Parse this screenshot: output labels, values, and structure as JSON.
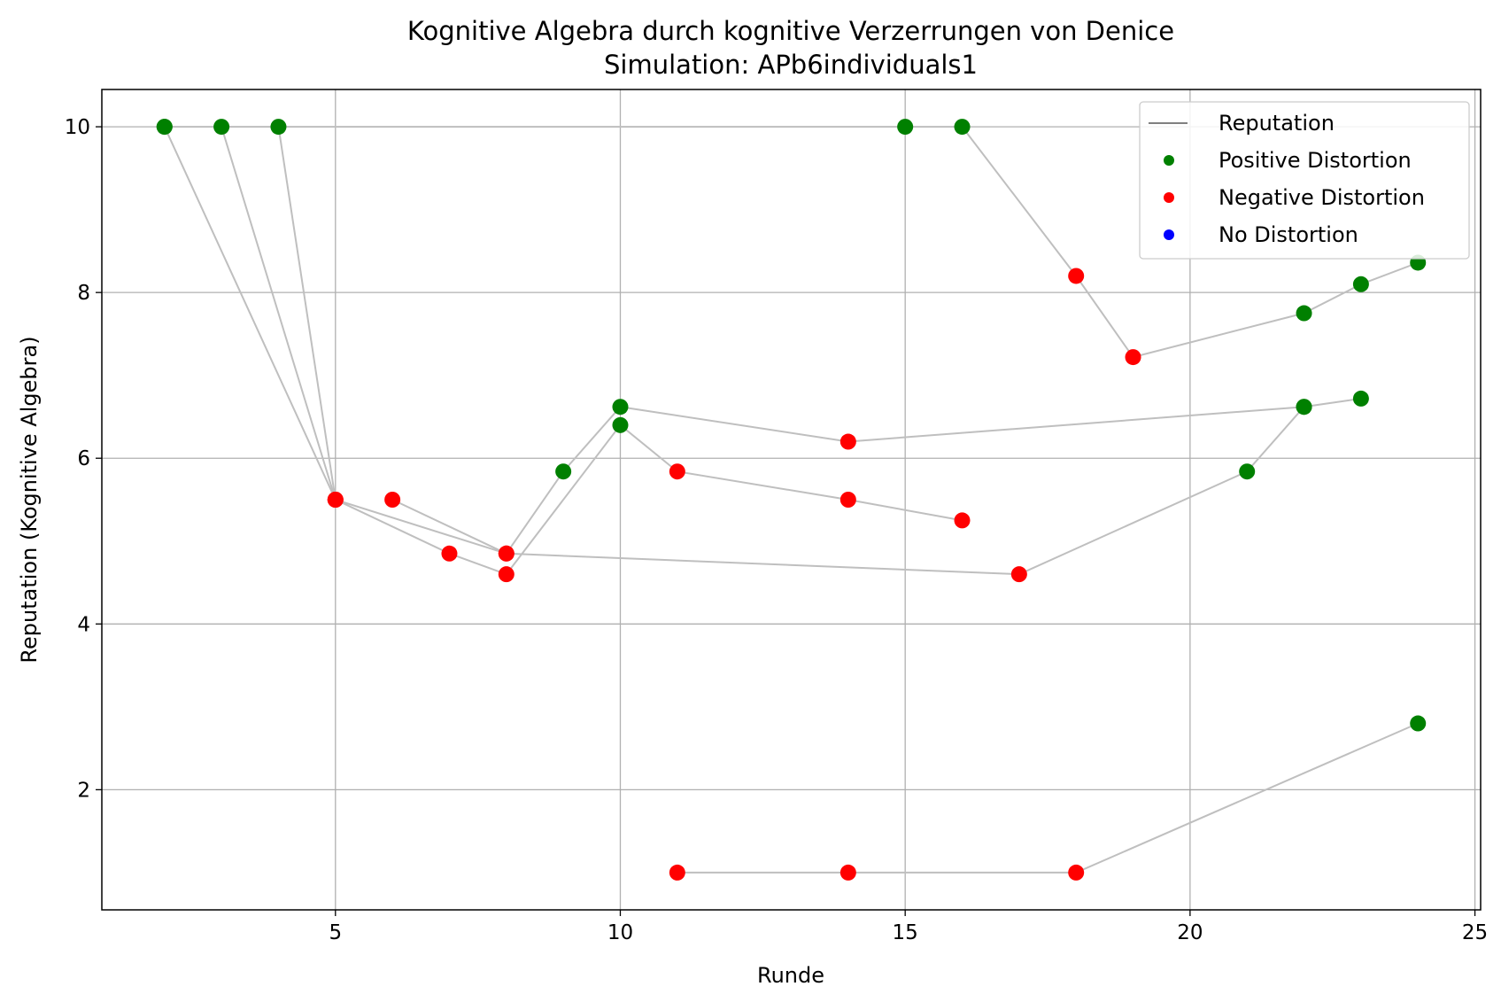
{
  "chart_data": {
    "type": "scatter",
    "title": "Kognitive Algebra durch kognitive Verzerrungen von Denice",
    "subtitle": "Simulation: APb6individuals1",
    "xlabel": "Runde",
    "ylabel": "Reputation (Kognitive Algebra)",
    "xlim": [
      0.9,
      25.1
    ],
    "ylim": [
      0.55,
      10.45
    ],
    "xticks": [
      5,
      10,
      15,
      20,
      25
    ],
    "yticks": [
      2,
      4,
      6,
      8,
      10
    ],
    "grid": true,
    "legend_position": "top-right",
    "colors": {
      "line": "#bfbfbf",
      "legend_line": "#808080",
      "positive": "#008000",
      "negative": "#ff0000",
      "none": "#0000ff",
      "grid": "#b0b0b0"
    },
    "legend": [
      {
        "label": "Reputation",
        "marker": "line"
      },
      {
        "label": "Positive Distortion",
        "marker": "positive"
      },
      {
        "label": "Negative Distortion",
        "marker": "negative"
      },
      {
        "label": "No Distortion",
        "marker": "none"
      }
    ],
    "series": [
      {
        "points": [
          {
            "x": 2,
            "y": 10,
            "d": "positive"
          },
          {
            "x": 5,
            "y": 5.5,
            "d": "negative"
          },
          {
            "x": 7,
            "y": 4.85,
            "d": "negative"
          },
          {
            "x": 8,
            "y": 4.6,
            "d": "negative"
          },
          {
            "x": 10,
            "y": 6.4,
            "d": "positive"
          },
          {
            "x": 11,
            "y": 5.84,
            "d": "negative"
          },
          {
            "x": 14,
            "y": 5.5,
            "d": "negative"
          },
          {
            "x": 16,
            "y": 5.25,
            "d": "negative"
          }
        ]
      },
      {
        "points": [
          {
            "x": 3,
            "y": 10,
            "d": "positive"
          },
          {
            "x": 5,
            "y": 5.5,
            "d": "negative"
          },
          {
            "x": 8,
            "y": 4.85,
            "d": "negative"
          },
          {
            "x": 17,
            "y": 4.6,
            "d": "negative"
          },
          {
            "x": 21,
            "y": 5.84,
            "d": "positive"
          },
          {
            "x": 22,
            "y": 6.62,
            "d": "positive"
          },
          {
            "x": 23,
            "y": 6.72,
            "d": "positive"
          }
        ]
      },
      {
        "points": [
          {
            "x": 4,
            "y": 10,
            "d": "positive"
          },
          {
            "x": 5,
            "y": 5.5,
            "d": "negative"
          }
        ]
      },
      {
        "points": [
          {
            "x": 6,
            "y": 5.5,
            "d": "negative"
          },
          {
            "x": 8,
            "y": 4.85,
            "d": "negative"
          },
          {
            "x": 9,
            "y": 5.84,
            "d": "positive"
          },
          {
            "x": 10,
            "y": 6.62,
            "d": "positive"
          },
          {
            "x": 14,
            "y": 6.2,
            "d": "negative"
          },
          {
            "x": 22,
            "y": 6.62,
            "d": "positive"
          }
        ]
      },
      {
        "points": [
          {
            "x": 2,
            "y": 10,
            "d": "positive"
          },
          {
            "x": 15,
            "y": 10,
            "d": "positive"
          },
          {
            "x": 16,
            "y": 10,
            "d": "positive"
          },
          {
            "x": 18,
            "y": 8.2,
            "d": "negative"
          },
          {
            "x": 19,
            "y": 7.22,
            "d": "negative"
          },
          {
            "x": 22,
            "y": 7.75,
            "d": "positive"
          },
          {
            "x": 23,
            "y": 8.1,
            "d": "positive"
          },
          {
            "x": 24,
            "y": 8.36,
            "d": "positive"
          }
        ]
      },
      {
        "points": [
          {
            "x": 11,
            "y": 1,
            "d": "negative"
          },
          {
            "x": 14,
            "y": 1,
            "d": "negative"
          },
          {
            "x": 18,
            "y": 1,
            "d": "negative"
          },
          {
            "x": 24,
            "y": 2.8,
            "d": "positive"
          }
        ]
      }
    ]
  }
}
